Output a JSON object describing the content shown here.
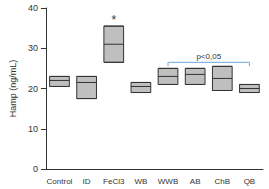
{
  "chart_data": {
    "type": "boxplot",
    "y_label": "Hamp (ng/mL)",
    "categories": [
      "Control",
      "ID",
      "FeCl3",
      "WB",
      "WWB",
      "AB",
      "ChB",
      "QB"
    ],
    "values": [
      [
        20.5,
        22,
        23
      ],
      [
        17.5,
        21.5,
        23
      ],
      [
        26.5,
        31,
        35.5
      ],
      [
        19,
        20.5,
        21.5
      ],
      [
        21,
        23,
        25
      ],
      [
        21,
        23.5,
        25
      ],
      [
        19.5,
        22.5,
        25.5
      ],
      [
        19,
        20,
        21
      ]
    ],
    "color": "#bfbfbf",
    "ylim": [
      0,
      40
    ],
    "yticks": [
      0,
      10,
      20,
      30,
      40
    ],
    "grid": false,
    "annotations": [
      {
        "text": "*",
        "category": "FeCl3",
        "y": 37
      },
      {
        "text": "p<0,05",
        "from": "WWB",
        "to": "QB",
        "y": 26.5
      }
    ]
  }
}
